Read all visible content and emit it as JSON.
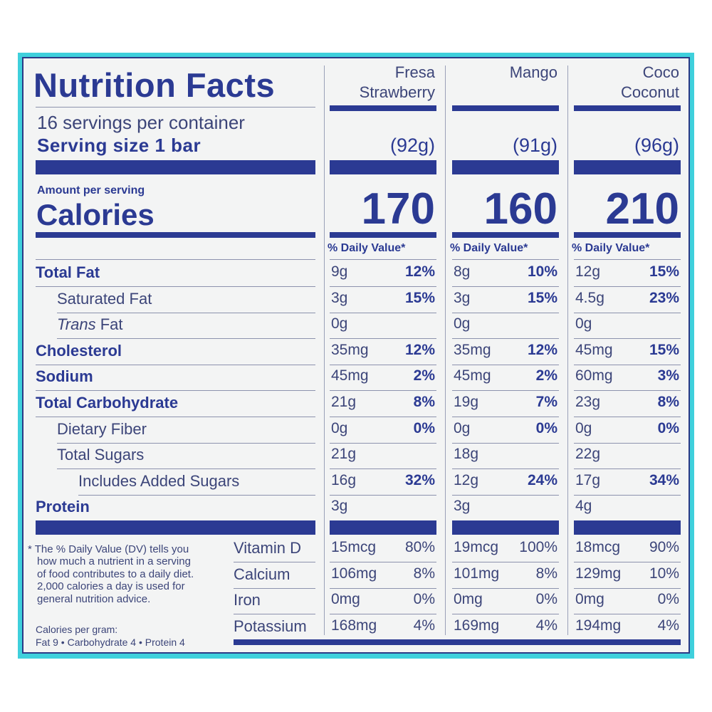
{
  "title": "Nutrition Facts",
  "servings_per_container": "16 servings per container",
  "serving_size": "Serving size 1 bar",
  "amount_per_serving": "Amount per serving",
  "calories_label": "Calories",
  "dv_header": "% Daily Value*",
  "columns": [
    {
      "name_es": "Fresa",
      "name_en": "Strawberry",
      "serving_weight": "(92g)",
      "calories": "170"
    },
    {
      "name_es": "",
      "name_en": "Mango",
      "serving_weight": "(91g)",
      "calories": "160"
    },
    {
      "name_es": "Coco",
      "name_en": "Coconut",
      "serving_weight": "(96g)",
      "calories": "210"
    }
  ],
  "nutrients": [
    {
      "label": "Total Fat",
      "style": "bold",
      "values": [
        [
          "9g",
          "12%"
        ],
        [
          "8g",
          "10%"
        ],
        [
          "12g",
          "15%"
        ]
      ]
    },
    {
      "label": "Saturated Fat",
      "style": "indent1",
      "values": [
        [
          "3g",
          "15%"
        ],
        [
          "3g",
          "15%"
        ],
        [
          "4.5g",
          "23%"
        ]
      ]
    },
    {
      "label_italic": "Trans",
      "label": " Fat",
      "style": "indent1",
      "values": [
        [
          "0g",
          ""
        ],
        [
          "0g",
          ""
        ],
        [
          "0g",
          ""
        ]
      ]
    },
    {
      "label": "Cholesterol",
      "style": "bold",
      "values": [
        [
          "35mg",
          "12%"
        ],
        [
          "35mg",
          "12%"
        ],
        [
          "45mg",
          "15%"
        ]
      ]
    },
    {
      "label": "Sodium",
      "style": "bold",
      "values": [
        [
          "45mg",
          "2%"
        ],
        [
          "45mg",
          "2%"
        ],
        [
          "60mg",
          "3%"
        ]
      ]
    },
    {
      "label": "Total Carbohydrate",
      "style": "bold",
      "values": [
        [
          "21g",
          "8%"
        ],
        [
          "19g",
          "7%"
        ],
        [
          "23g",
          "8%"
        ]
      ]
    },
    {
      "label": "Dietary Fiber",
      "style": "indent1",
      "values": [
        [
          "0g",
          "0%"
        ],
        [
          "0g",
          "0%"
        ],
        [
          "0g",
          "0%"
        ]
      ]
    },
    {
      "label": "Total Sugars",
      "style": "indent1",
      "values": [
        [
          "21g",
          ""
        ],
        [
          "18g",
          ""
        ],
        [
          "22g",
          ""
        ]
      ]
    },
    {
      "label": "Includes Added Sugars",
      "style": "indent2",
      "values": [
        [
          "16g",
          "32%"
        ],
        [
          "12g",
          "24%"
        ],
        [
          "17g",
          "34%"
        ]
      ]
    },
    {
      "label": "Protein",
      "style": "bold",
      "values": [
        [
          "3g",
          ""
        ],
        [
          "3g",
          ""
        ],
        [
          "4g",
          ""
        ]
      ]
    }
  ],
  "vitamins": [
    {
      "label": "Vitamin D",
      "values": [
        [
          "15mcg",
          "80%"
        ],
        [
          "19mcg",
          "100%"
        ],
        [
          "18mcg",
          "90%"
        ]
      ]
    },
    {
      "label": "Calcium",
      "values": [
        [
          "106mg",
          "8%"
        ],
        [
          "101mg",
          "8%"
        ],
        [
          "129mg",
          "10%"
        ]
      ]
    },
    {
      "label": "Iron",
      "values": [
        [
          "0mg",
          "0%"
        ],
        [
          "0mg",
          "0%"
        ],
        [
          "0mg",
          "0%"
        ]
      ]
    },
    {
      "label": "Potassium",
      "values": [
        [
          "168mg",
          "4%"
        ],
        [
          "169mg",
          "4%"
        ],
        [
          "194mg",
          "4%"
        ]
      ]
    }
  ],
  "footnote": {
    "lines": [
      "* The % Daily Value (DV) tells you",
      "how much a nutrient in a serving",
      "of food contributes to a daily diet.",
      "2,000 calories a day is used for",
      "general nutrition advice."
    ],
    "cal_per_gram": "Calories per gram:",
    "cal_values": "Fat 9 • Carbohydrate 4 • Protein 4"
  }
}
